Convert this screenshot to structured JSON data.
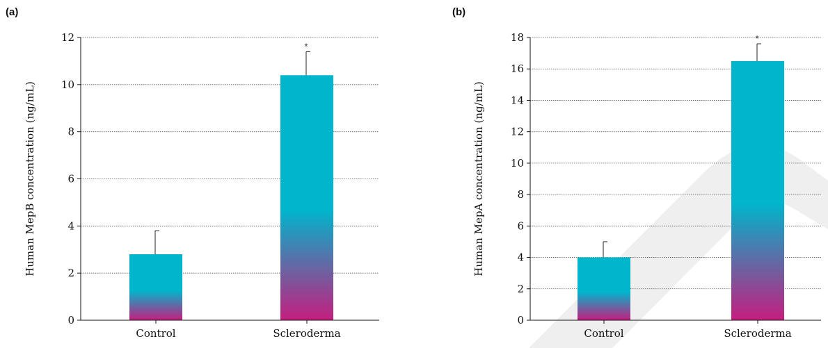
{
  "colors": {
    "bar_top": "#00b5cc",
    "bar_bottom": "#c41e7e",
    "watermark": "#efefef"
  },
  "chart_data": [
    {
      "type": "bar",
      "panel": "(a)",
      "categories": [
        "Control",
        "Scleroderma"
      ],
      "values": [
        2.8,
        10.4
      ],
      "errors": [
        1.0,
        1.0
      ],
      "significance": [
        "",
        "*"
      ],
      "ylabel": "Human MepB concentration (ng/mL)",
      "ylim": [
        0,
        12
      ],
      "yticks": [
        0,
        2,
        4,
        6,
        8,
        10,
        12
      ],
      "grid": true
    },
    {
      "type": "bar",
      "panel": "(b)",
      "categories": [
        "Control",
        "Scleroderma"
      ],
      "values": [
        4.0,
        16.5
      ],
      "errors": [
        1.0,
        1.1
      ],
      "significance": [
        "",
        "*"
      ],
      "ylabel": "Human MepA concentration (ng/mL)",
      "ylim": [
        0,
        18
      ],
      "yticks": [
        0,
        2,
        4,
        6,
        8,
        10,
        12,
        14,
        16,
        18
      ],
      "grid": true
    }
  ]
}
